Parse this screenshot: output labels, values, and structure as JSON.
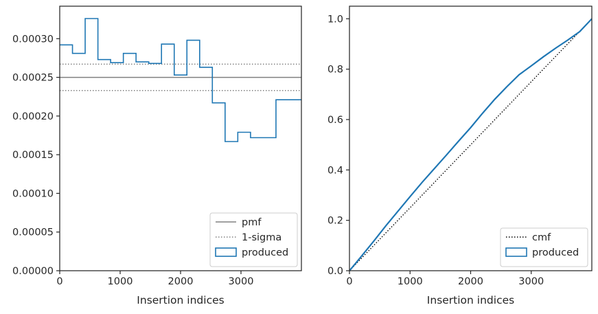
{
  "chart_data": [
    {
      "type": "line",
      "subtype": "step-histogram",
      "xlabel": "Insertion indices",
      "ylabel": "",
      "xlim": [
        0,
        4000
      ],
      "ylim": [
        0,
        0.000342
      ],
      "xticks": [
        0,
        1000,
        2000,
        3000
      ],
      "xtick_labels": [
        "0",
        "1000",
        "2000",
        "3000"
      ],
      "yticks": [
        0,
        5e-05,
        0.0001,
        0.00015,
        0.0002,
        0.00025,
        0.0003
      ],
      "ytick_labels": [
        "0.00000",
        "0.00005",
        "0.00010",
        "0.00015",
        "0.00020",
        "0.00025",
        "0.00030"
      ],
      "legend": {
        "location": "lower right",
        "entries": [
          "pmf",
          "1-sigma",
          "produced"
        ]
      },
      "series": [
        {
          "name": "pmf",
          "style": "solid",
          "color": "#808080",
          "y": 0.00025
        },
        {
          "name": "1-sigma",
          "style": "dotted",
          "color": "#808080",
          "y": [
            0.000267,
            0.000233
          ]
        },
        {
          "name": "produced",
          "style": "step",
          "color": "#1f77b4",
          "bin_edges": [
            0,
            211,
            421,
            632,
            842,
            1053,
            1263,
            1474,
            1684,
            1895,
            2105,
            2316,
            2526,
            2737,
            2947,
            3158,
            3368,
            3579,
            3789,
            4000
          ],
          "values": [
            0.000292,
            0.000281,
            0.000326,
            0.000273,
            0.000269,
            0.000281,
            0.00027,
            0.000268,
            0.000293,
            0.000253,
            0.000298,
            0.000263,
            0.000217,
            0.000167,
            0.000179,
            0.000172,
            0.000172,
            0.000221,
            0.000221
          ]
        }
      ]
    },
    {
      "type": "line",
      "subtype": "cumulative",
      "xlabel": "Insertion indices",
      "ylabel": "",
      "xlim": [
        0,
        4000
      ],
      "ylim": [
        0,
        1.05
      ],
      "xticks": [
        0,
        1000,
        2000,
        3000
      ],
      "xtick_labels": [
        "0",
        "1000",
        "2000",
        "3000"
      ],
      "yticks": [
        0,
        0.2,
        0.4,
        0.6,
        0.8,
        1.0
      ],
      "ytick_labels": [
        "0.0",
        "0.2",
        "0.4",
        "0.6",
        "0.8",
        "1.0"
      ],
      "legend": {
        "location": "lower right",
        "entries": [
          "cmf",
          "produced"
        ]
      },
      "series": [
        {
          "name": "cmf",
          "style": "dotted",
          "color": "#000000",
          "x": [
            0,
            4000
          ],
          "y": [
            0,
            1
          ]
        },
        {
          "name": "produced",
          "style": "step",
          "color": "#1f77b4",
          "x": [
            0,
            200,
            400,
            600,
            800,
            1000,
            1200,
            1400,
            1600,
            1800,
            2000,
            2200,
            2400,
            2600,
            2800,
            3000,
            3200,
            3400,
            3600,
            3800,
            4000
          ],
          "y": [
            0,
            0.058,
            0.117,
            0.178,
            0.236,
            0.294,
            0.351,
            0.405,
            0.459,
            0.514,
            0.568,
            0.626,
            0.681,
            0.731,
            0.778,
            0.813,
            0.849,
            0.883,
            0.915,
            0.949,
            1.0
          ]
        }
      ]
    }
  ]
}
